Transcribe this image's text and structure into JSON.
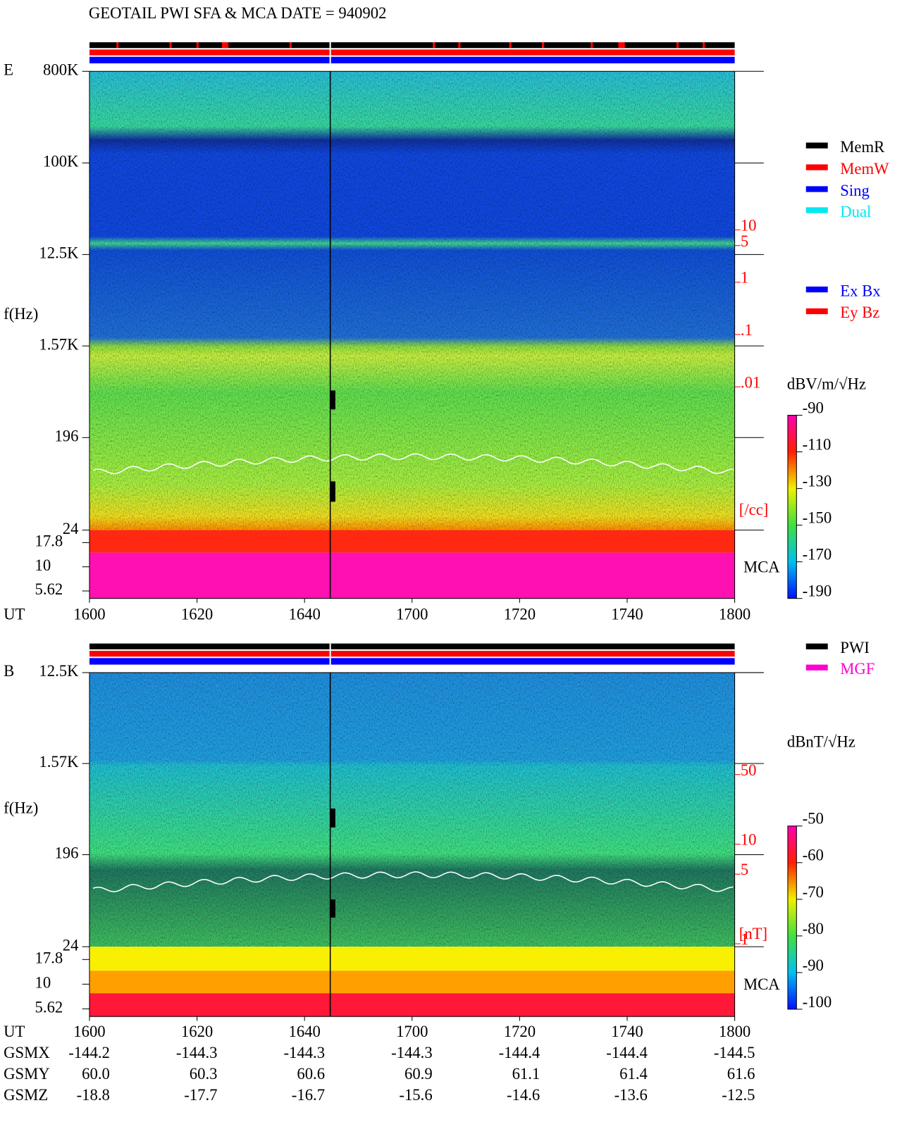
{
  "header": {
    "title": "GEOTAIL  PWI SFA & MCA   DATE = 940902"
  },
  "chart_data": [
    {
      "type": "spectrogram",
      "panel": "E",
      "y_label": "f(Hz)",
      "x_label": "UT",
      "log_y": true,
      "x": [
        "1600",
        "1620",
        "1640",
        "1700",
        "1720",
        "1740",
        "1800"
      ],
      "ylim": [
        24,
        800000
      ],
      "yticks": [
        {
          "value": 800000,
          "label": "800K"
        },
        {
          "value": 100000,
          "label": "100K"
        },
        {
          "value": 12500,
          "label": "12.5K"
        },
        {
          "value": 1570,
          "label": "1.57K"
        },
        196,
        24
      ],
      "mca_label": "MCA",
      "mca_ylim": [
        4.7,
        24
      ],
      "mca_yticks": [
        17.8,
        10,
        5.62
      ],
      "density_ticks": [
        10,
        5,
        1,
        {
          "value": 0.1,
          "label": ".1"
        },
        {
          "value": 0.01,
          "label": ".01"
        }
      ],
      "density_unit": "[/cc]",
      "zlim": [
        -190,
        -90
      ],
      "zticks": [
        -90,
        -110,
        -130,
        -150,
        -170,
        -190
      ],
      "z_label": "dBV/m/√Hz",
      "legend": [
        {
          "name": "MemR",
          "color": "#000000"
        },
        {
          "name": "MemW",
          "color": "#ff0000"
        },
        {
          "name": "Sing",
          "color": "#0000ff"
        },
        {
          "name": "Dual",
          "color": "#00e8f0"
        }
      ],
      "legend2": [
        {
          "name": "Ex Bx",
          "color": "#0000ff"
        },
        {
          "name": "Ey Bz",
          "color": "#ff0000"
        }
      ]
    },
    {
      "type": "spectrogram",
      "panel": "B",
      "y_label": "f(Hz)",
      "x_label": "UT",
      "log_y": true,
      "x": [
        "1600",
        "1620",
        "1640",
        "1700",
        "1720",
        "1740",
        "1800"
      ],
      "ylim": [
        24,
        12500
      ],
      "yticks": [
        {
          "value": 12500,
          "label": "12.5K"
        },
        {
          "value": 1570,
          "label": "1.57K"
        },
        196,
        24
      ],
      "mca_label": "MCA",
      "mca_ylim": [
        4.7,
        24
      ],
      "mca_yticks": [
        17.8,
        10,
        5.62
      ],
      "density_ticks": [
        50,
        10,
        5,
        1
      ],
      "density_unit": "[nT]",
      "zlim": [
        -100,
        -50
      ],
      "zticks": [
        -50,
        -60,
        -70,
        -80,
        -90,
        -100
      ],
      "z_label": "dBnT/√Hz",
      "legend": [
        {
          "name": "PWI",
          "color": "#000000"
        },
        {
          "name": "MGF",
          "color": "#ff00d0"
        }
      ]
    }
  ],
  "orbit": {
    "rows": [
      {
        "name": "GSMX",
        "values": [
          "-144.2",
          "-144.3",
          "-144.3",
          "-144.3",
          "-144.4",
          "-144.4",
          "-144.5"
        ]
      },
      {
        "name": "GSMY",
        "values": [
          "60.0",
          "60.3",
          "60.6",
          "60.9",
          "61.1",
          "61.4",
          "61.6"
        ]
      },
      {
        "name": "GSMZ",
        "values": [
          "-18.8",
          "-17.7",
          "-16.7",
          "-15.6",
          "-14.6",
          "-13.6",
          "-12.5"
        ]
      }
    ]
  }
}
